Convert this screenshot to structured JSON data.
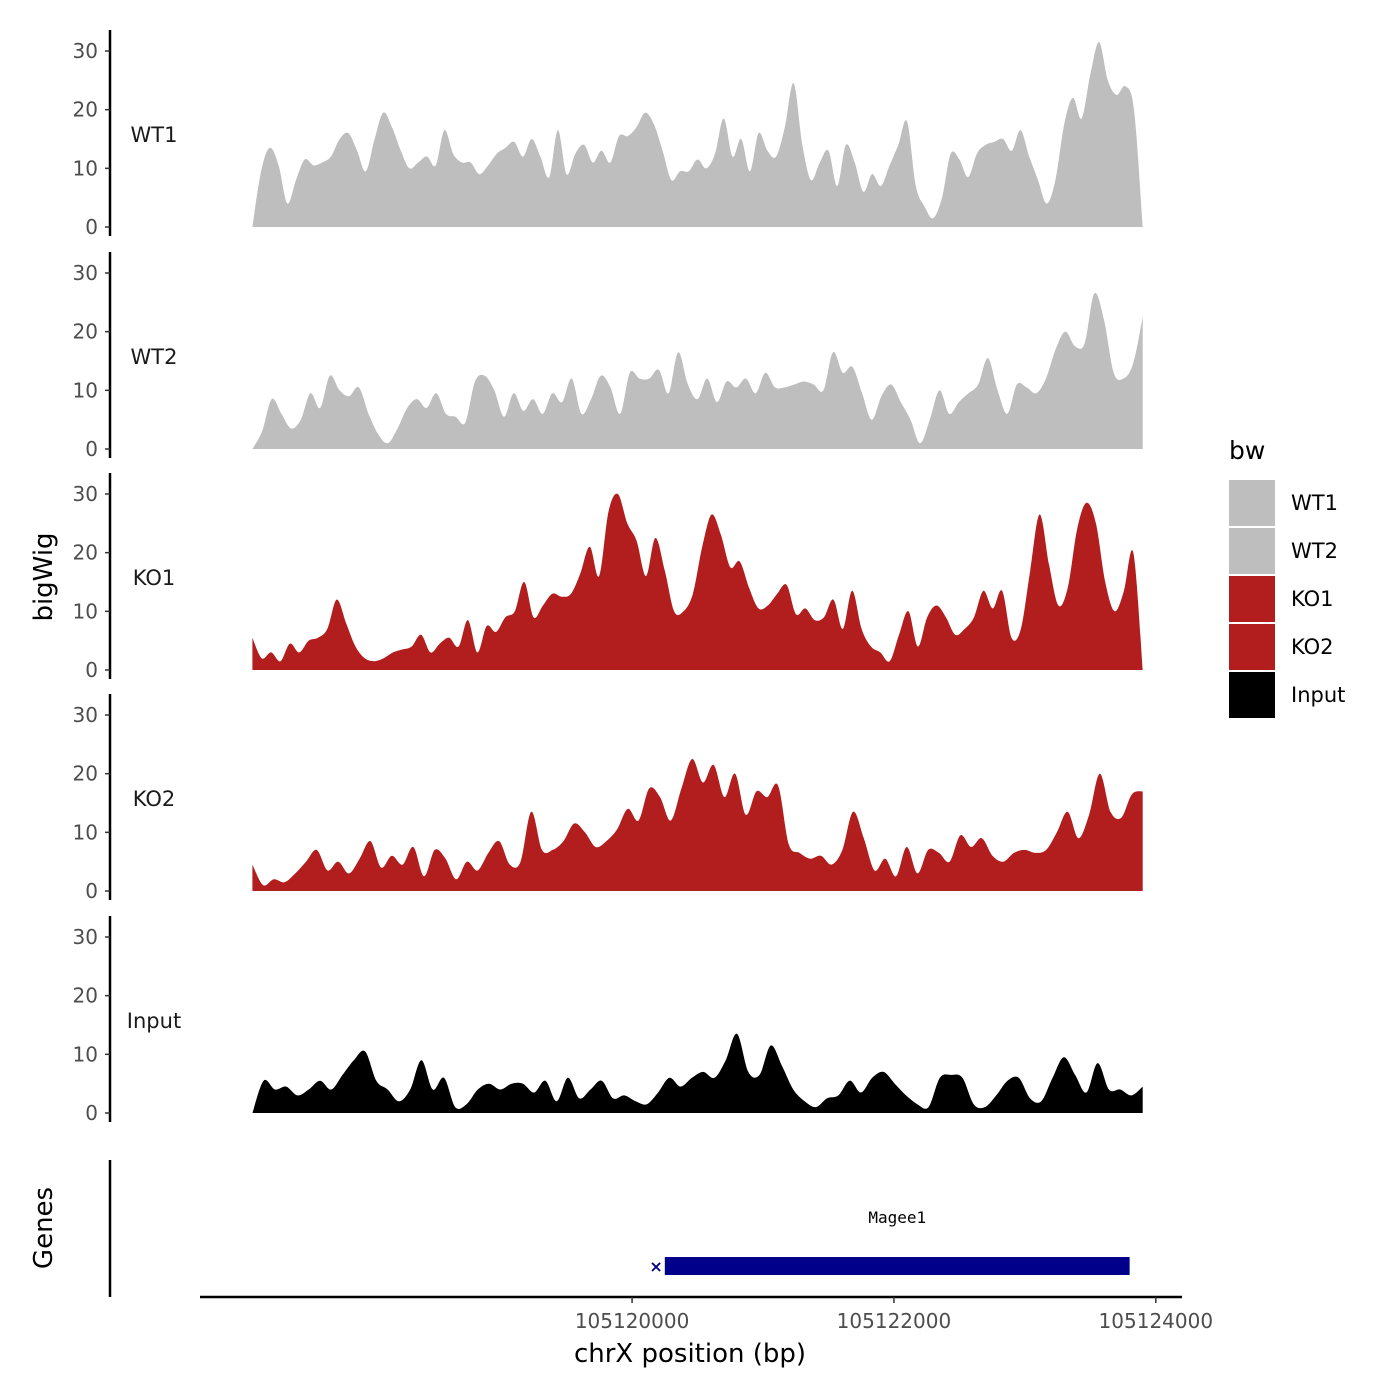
{
  "chart_data": {
    "type": "area",
    "title": "",
    "ylabel": "bigWig",
    "genes_label": "Genes",
    "xlabel": "chrX position (bp)",
    "x_range": [
      105117100,
      105123900
    ],
    "x_axis_range": [
      105116700,
      105124200
    ],
    "x_ticks": [
      {
        "value": 105120000,
        "label": "105120000"
      },
      {
        "value": 105122000,
        "label": "105122000"
      },
      {
        "value": 105124000,
        "label": "105124000"
      }
    ],
    "ylim": [
      0,
      32
    ],
    "y_ticks": [
      {
        "value": 0,
        "label": "0"
      },
      {
        "value": 10,
        "label": "10"
      },
      {
        "value": 20,
        "label": "20"
      },
      {
        "value": 30,
        "label": "30"
      }
    ],
    "series": [
      {
        "name": "WT1",
        "color": "#bebebe",
        "values": [
          0,
          9.5,
          13.5,
          10.5,
          4,
          8,
          11.5,
          10.5,
          11,
          12,
          15,
          16,
          13,
          9.5,
          15,
          19.5,
          17,
          13,
          10,
          11,
          12,
          10.5,
          16.5,
          12.5,
          11,
          11,
          9,
          10.5,
          12.5,
          13.5,
          14.5,
          12,
          15,
          12,
          8.5,
          16.5,
          9,
          12.5,
          14,
          11,
          13,
          11,
          15.5,
          15.5,
          17,
          19.5,
          17.5,
          13,
          8,
          9.5,
          9.5,
          11.5,
          10,
          12.5,
          18.5,
          12,
          15,
          9.5,
          16,
          13,
          12,
          17,
          24.5,
          14,
          8,
          11,
          13,
          7,
          14,
          11,
          6,
          9,
          7,
          10.5,
          14,
          18,
          7,
          3.5,
          1.5,
          5,
          12.5,
          11.5,
          8.5,
          12.5,
          14,
          14.5,
          15,
          13,
          16.5,
          12,
          8,
          4,
          8,
          17.5,
          22,
          18.5,
          26,
          31.5,
          25,
          22.5,
          24,
          20,
          0
        ]
      },
      {
        "name": "WT2",
        "color": "#bebebe",
        "values": [
          0,
          3,
          8.5,
          6,
          3.5,
          5,
          9.5,
          7,
          12.5,
          10,
          9,
          10.5,
          6,
          2.5,
          1,
          3.5,
          7,
          8.5,
          7,
          9.5,
          6,
          5.5,
          4.5,
          11.5,
          12.5,
          10,
          5.5,
          9.5,
          6.5,
          8.5,
          6,
          9.5,
          8,
          12,
          6,
          8.5,
          12.5,
          10.5,
          6,
          13,
          12,
          12,
          13.5,
          9.5,
          16.5,
          11,
          8.5,
          12,
          8,
          11.5,
          10.5,
          12,
          9.5,
          13,
          10.5,
          10.5,
          11,
          11.5,
          11,
          10,
          16.5,
          13,
          14,
          9.5,
          5,
          9,
          11,
          8,
          5,
          1,
          5,
          10,
          6,
          8,
          9.5,
          11,
          15.5,
          10,
          6,
          11,
          10.5,
          9.5,
          12,
          17,
          20,
          17.5,
          18,
          26.5,
          22,
          13,
          12,
          14.5,
          22.5
        ]
      },
      {
        "name": "KO1",
        "color": "#b21e1e",
        "values": [
          5.5,
          2,
          3,
          1.5,
          4.5,
          3,
          5,
          5.5,
          7,
          12,
          8,
          4,
          2,
          1.5,
          2,
          3,
          3.5,
          4,
          6,
          3,
          4.5,
          5.5,
          4,
          8.5,
          3,
          7.5,
          6.5,
          9,
          10,
          15,
          9,
          11,
          13,
          12.5,
          13,
          16.5,
          21,
          16,
          27,
          30,
          25,
          22,
          16,
          22.5,
          17,
          10,
          10,
          13,
          21,
          26.5,
          23,
          17.5,
          18.5,
          14,
          10.5,
          11,
          13,
          14.5,
          9.5,
          10.5,
          8.5,
          9,
          12,
          7,
          13.5,
          7,
          4,
          3,
          1.5,
          6,
          10,
          4,
          9,
          11,
          9,
          6,
          7,
          9,
          13.5,
          10.5,
          13.5,
          5.5,
          7,
          17,
          26.5,
          18,
          11,
          14,
          24,
          28.5,
          25,
          15,
          10,
          13.5,
          20,
          0
        ]
      },
      {
        "name": "KO2",
        "color": "#b21e1e",
        "values": [
          4.5,
          1,
          2,
          1.5,
          3,
          5,
          7,
          3.5,
          5,
          3,
          5.5,
          8.5,
          4,
          6,
          4.5,
          7.5,
          2.5,
          7,
          5.5,
          2,
          5,
          3.5,
          6.5,
          8.5,
          4.5,
          5,
          13.5,
          7,
          7,
          8.5,
          11.5,
          10,
          7.5,
          8.5,
          10.5,
          14,
          12,
          17.5,
          16,
          12,
          17.5,
          22.5,
          18.5,
          21.5,
          16,
          20,
          13,
          17,
          16,
          18,
          8,
          6.5,
          5.5,
          6,
          4.5,
          7,
          13.5,
          9,
          3.5,
          5.5,
          2.5,
          7.5,
          3,
          7,
          6.5,
          5,
          9.5,
          7.5,
          9,
          6,
          5,
          6.5,
          7,
          6.5,
          7,
          10,
          13.5,
          9,
          13,
          20,
          13.5,
          12.5,
          16.5,
          17
        ]
      },
      {
        "name": "Input",
        "color": "#000000",
        "values": [
          0,
          5.5,
          4,
          4.5,
          3,
          4,
          5.5,
          4,
          6.5,
          9,
          10.5,
          5.5,
          4,
          2,
          4,
          9,
          4,
          6,
          1,
          1.5,
          4,
          5,
          4,
          5,
          5,
          3.5,
          5.5,
          2,
          6,
          2.5,
          4,
          5.5,
          2.5,
          3,
          2,
          1.5,
          3.5,
          6,
          4.5,
          6,
          7,
          6,
          9,
          13.5,
          7,
          6.5,
          11.5,
          8,
          4,
          2,
          1,
          2.5,
          3,
          5.5,
          3.5,
          6,
          7,
          5,
          3,
          1.5,
          1,
          6,
          6.5,
          6,
          1.5,
          1,
          3,
          5.5,
          6,
          2.5,
          2,
          6,
          9.5,
          6.5,
          3.5,
          8.5,
          4,
          4,
          3,
          4.5
        ]
      }
    ],
    "gene": {
      "name": "Magee1",
      "start": 105120250,
      "end": 105123800,
      "color": "#00008b",
      "strand": "-"
    },
    "legend_title": "bw",
    "legend": [
      {
        "label": "WT1",
        "color": "#bebebe"
      },
      {
        "label": "WT2",
        "color": "#bebebe"
      },
      {
        "label": "KO1",
        "color": "#b21e1e"
      },
      {
        "label": "KO2",
        "color": "#b21e1e"
      },
      {
        "label": "Input",
        "color": "#000000"
      }
    ]
  }
}
